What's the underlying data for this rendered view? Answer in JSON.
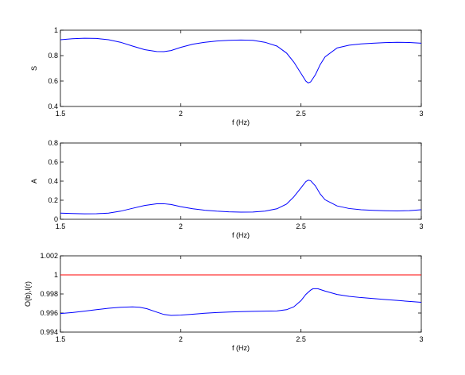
{
  "chart_data": [
    {
      "type": "line",
      "xlabel": "f (Hz)",
      "ylabel": "S",
      "xlim": [
        1.5,
        3
      ],
      "ylim": [
        0.4,
        1
      ],
      "xticks": [
        "1.5",
        "2",
        "2.5",
        "3"
      ],
      "yticks": [
        "0.4",
        "0.6",
        "0.8",
        "1"
      ],
      "grid": false,
      "series": [
        {
          "color": "#0000ff",
          "x": [
            1.5,
            1.55,
            1.6,
            1.65,
            1.7,
            1.75,
            1.8,
            1.85,
            1.9,
            1.93,
            1.96,
            2.0,
            2.05,
            2.1,
            2.15,
            2.2,
            2.25,
            2.3,
            2.35,
            2.4,
            2.44,
            2.47,
            2.5,
            2.52,
            2.53,
            2.54,
            2.56,
            2.58,
            2.6,
            2.65,
            2.7,
            2.75,
            2.8,
            2.85,
            2.9,
            2.95,
            3.0
          ],
          "y": [
            0.925,
            0.933,
            0.937,
            0.935,
            0.925,
            0.905,
            0.875,
            0.847,
            0.832,
            0.831,
            0.84,
            0.865,
            0.89,
            0.905,
            0.915,
            0.92,
            0.923,
            0.92,
            0.905,
            0.875,
            0.82,
            0.75,
            0.66,
            0.6,
            0.585,
            0.593,
            0.65,
            0.73,
            0.79,
            0.86,
            0.882,
            0.892,
            0.898,
            0.902,
            0.905,
            0.903,
            0.898
          ]
        }
      ]
    },
    {
      "type": "line",
      "xlabel": "f (Hz)",
      "ylabel": "A",
      "xlim": [
        1.5,
        3
      ],
      "ylim": [
        0,
        0.8
      ],
      "xticks": [
        "1.5",
        "2",
        "2.5",
        "3"
      ],
      "yticks": [
        "0",
        "0.2",
        "0.4",
        "0.6",
        "0.8"
      ],
      "grid": false,
      "series": [
        {
          "color": "#0000ff",
          "x": [
            1.5,
            1.55,
            1.6,
            1.65,
            1.7,
            1.75,
            1.8,
            1.85,
            1.9,
            1.93,
            1.96,
            2.0,
            2.05,
            2.1,
            2.15,
            2.2,
            2.25,
            2.3,
            2.35,
            2.4,
            2.44,
            2.47,
            2.5,
            2.52,
            2.53,
            2.54,
            2.56,
            2.58,
            2.6,
            2.65,
            2.7,
            2.75,
            2.8,
            2.85,
            2.9,
            2.95,
            3.0
          ],
          "y": [
            0.065,
            0.06,
            0.057,
            0.058,
            0.065,
            0.085,
            0.115,
            0.145,
            0.162,
            0.163,
            0.155,
            0.132,
            0.11,
            0.095,
            0.085,
            0.078,
            0.075,
            0.076,
            0.085,
            0.11,
            0.16,
            0.235,
            0.33,
            0.395,
            0.41,
            0.405,
            0.35,
            0.265,
            0.205,
            0.14,
            0.113,
            0.1,
            0.094,
            0.09,
            0.088,
            0.091,
            0.1
          ]
        }
      ]
    },
    {
      "type": "line",
      "xlabel": "f (Hz)",
      "ylabel": "O(b),I(r)",
      "xlim": [
        1.5,
        3
      ],
      "ylim": [
        0.994,
        1.002
      ],
      "xticks": [
        "1.5",
        "2",
        "2.5",
        "3"
      ],
      "yticks": [
        "0.994",
        "0.996",
        "0.998",
        "1",
        "1.002"
      ],
      "grid": false,
      "series": [
        {
          "color": "#0000ff",
          "x": [
            1.5,
            1.55,
            1.6,
            1.65,
            1.7,
            1.75,
            1.8,
            1.83,
            1.86,
            1.9,
            1.93,
            1.96,
            2.0,
            2.05,
            2.1,
            2.15,
            2.2,
            2.25,
            2.3,
            2.35,
            2.4,
            2.44,
            2.47,
            2.5,
            2.52,
            2.54,
            2.55,
            2.57,
            2.6,
            2.65,
            2.7,
            2.75,
            2.8,
            2.85,
            2.9,
            2.95,
            3.0
          ],
          "y": [
            0.99595,
            0.99605,
            0.9962,
            0.99635,
            0.9965,
            0.9966,
            0.99665,
            0.9966,
            0.99645,
            0.9961,
            0.99585,
            0.99575,
            0.99578,
            0.99588,
            0.99598,
            0.99605,
            0.9961,
            0.99615,
            0.99618,
            0.9962,
            0.99622,
            0.99635,
            0.99665,
            0.9973,
            0.99795,
            0.9984,
            0.99855,
            0.99855,
            0.9983,
            0.99795,
            0.99775,
            0.99762,
            0.99752,
            0.99742,
            0.99732,
            0.99722,
            0.99712
          ]
        },
        {
          "color": "#ff0000",
          "x": [
            1.5,
            3.0
          ],
          "y": [
            1.0,
            1.0
          ]
        }
      ]
    }
  ]
}
